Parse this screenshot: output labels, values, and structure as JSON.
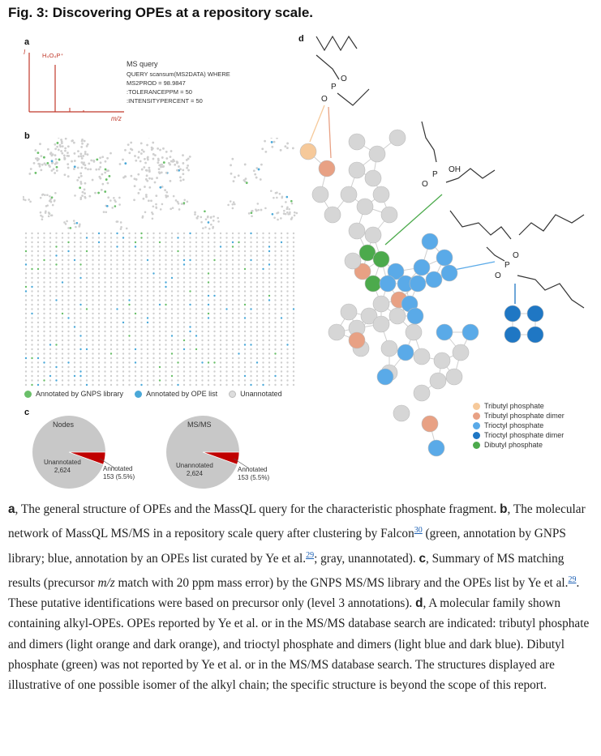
{
  "figure": {
    "title": "Fig. 3: Discovering OPEs at a repository scale."
  },
  "panel_a": {
    "label": "a",
    "y_axis_label": "I",
    "x_axis_label": "m/z",
    "peak_label": "H₄O₄P⁺",
    "query_title": "MS query",
    "query_lines": [
      "QUERY scansum(MS2DATA) WHERE",
      "MS2PROD = 98.9847",
      ":TOLERANCEPPM = 50",
      ":INTENSITYPERCENT = 50"
    ],
    "color": "#c0392b"
  },
  "panel_b": {
    "label": "b",
    "legend": [
      {
        "label": "Annotated by GNPS library",
        "color": "#6abf69"
      },
      {
        "label": "Annotated by OPE list",
        "color": "#4aa8d8"
      },
      {
        "label": "Unannotated",
        "color": "#d9d9d9"
      }
    ]
  },
  "panel_c": {
    "label": "c"
  },
  "chart_data": [
    {
      "type": "pie",
      "title": "Nodes",
      "slices": [
        {
          "label": "Unannotated",
          "value": 2624,
          "text": "2,624",
          "color": "#c8c8c8"
        },
        {
          "label": "Annotated",
          "value": 153,
          "text": "153 (5.5%)",
          "color": "#c00000"
        }
      ]
    },
    {
      "type": "pie",
      "title": "MS/MS",
      "slices": [
        {
          "label": "Unannotated",
          "value": 2624,
          "text": "2,624",
          "color": "#c8c8c8"
        },
        {
          "label": "Annotated",
          "value": 153,
          "text": "153 (5.5%)",
          "color": "#c00000"
        }
      ]
    }
  ],
  "panel_d": {
    "label": "d",
    "atoms": {
      "P": "P",
      "O": "O",
      "OH": "OH"
    },
    "legend": [
      {
        "label": "Tributyl phosphate",
        "color": "#f6c99a"
      },
      {
        "label": "Tributyl phosphate dimer",
        "color": "#e8a184"
      },
      {
        "label": "Trioctyl phosphate",
        "color": "#5aaae8"
      },
      {
        "label": "Trioctyl phosphate dimer",
        "color": "#1f77c4"
      },
      {
        "label": "Dibutyl phosphate",
        "color": "#4caa4c"
      }
    ]
  },
  "caption": {
    "a_label": "a",
    "a_text": ", The general structure of OPEs and the MassQL query for the characteristic phosphate fragment. ",
    "b_label": "b",
    "b_text1": ", The molecular network of MassQL MS/MS in a repository scale query after clustering by Falcon",
    "ref30": "30",
    "b_text2": " (green, annotation by GNPS library; blue, annotation by an OPEs list curated by Ye et al.",
    "ref29": "29",
    "b_text3": "; gray, unannotated). ",
    "c_label": "c",
    "c_text1": ", Summary of MS matching results (precursor ",
    "c_mz": "m/z",
    "c_text2": " match with 20 ppm mass error) by the GNPS MS/MS library and the OPEs list by Ye et al.",
    "ref29b": "29",
    "c_text3": ". These putative identifications were based on precursor only (level 3 annotations). ",
    "d_label": "d",
    "d_text": ", A molecular family shown containing alkyl-OPEs. OPEs reported by Ye et al. or in the MS/MS database search are indicated: tributyl phosphate and dimers (light orange and dark orange), and trioctyl phosphate and dimers (light blue and dark blue). Dibutyl phosphate (green) was not reported by Ye et al. or in the MS/MS database search. The structures displayed are illustrative of one possible isomer of the alkyl chain; the specific structure is beyond the scope of this report."
  }
}
